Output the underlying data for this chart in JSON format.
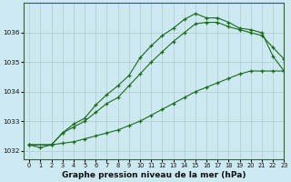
{
  "title": "Graphe pression niveau de la mer (hPa)",
  "bg_color": "#cce8f0",
  "grid_color": "#aacccc",
  "line_color": "#1a6b1a",
  "xlim": [
    -0.5,
    23
  ],
  "ylim": [
    1031.7,
    1037.0
  ],
  "xticks": [
    0,
    1,
    2,
    3,
    4,
    5,
    6,
    7,
    8,
    9,
    10,
    11,
    12,
    13,
    14,
    15,
    16,
    17,
    18,
    19,
    20,
    21,
    22,
    23
  ],
  "yticks": [
    1032,
    1033,
    1034,
    1035,
    1036
  ],
  "line1_x": [
    0,
    1,
    2,
    3,
    4,
    5,
    6,
    7,
    8,
    9,
    10,
    11,
    12,
    13,
    14,
    15,
    16,
    17,
    18,
    19,
    20,
    21,
    22,
    23
  ],
  "line1_y": [
    1032.2,
    1032.1,
    1032.2,
    1032.25,
    1032.3,
    1032.4,
    1032.5,
    1032.6,
    1032.7,
    1032.85,
    1033.0,
    1033.2,
    1033.4,
    1033.6,
    1033.8,
    1034.0,
    1034.15,
    1034.3,
    1034.45,
    1034.6,
    1034.7,
    1034.7,
    1034.7,
    1034.7
  ],
  "line2_x": [
    0,
    2,
    3,
    4,
    5,
    6,
    7,
    8,
    9,
    10,
    11,
    12,
    13,
    14,
    15,
    16,
    17,
    18,
    19,
    20,
    21,
    22,
    23
  ],
  "line2_y": [
    1032.2,
    1032.2,
    1032.6,
    1032.8,
    1033.0,
    1033.3,
    1033.6,
    1033.8,
    1034.2,
    1034.6,
    1035.0,
    1035.35,
    1035.7,
    1036.0,
    1036.3,
    1036.35,
    1036.35,
    1036.2,
    1036.1,
    1036.0,
    1035.9,
    1035.5,
    1035.1
  ],
  "line3_x": [
    0,
    2,
    3,
    4,
    5,
    6,
    7,
    8,
    9,
    10,
    11,
    12,
    13,
    14,
    15,
    16,
    17,
    18,
    19,
    20,
    21,
    22,
    23
  ],
  "line3_y": [
    1032.2,
    1032.2,
    1032.6,
    1032.9,
    1033.1,
    1033.55,
    1033.9,
    1034.2,
    1034.55,
    1035.15,
    1035.55,
    1035.9,
    1036.15,
    1036.45,
    1036.65,
    1036.5,
    1036.5,
    1036.35,
    1036.15,
    1036.1,
    1036.0,
    1035.2,
    1034.7
  ]
}
